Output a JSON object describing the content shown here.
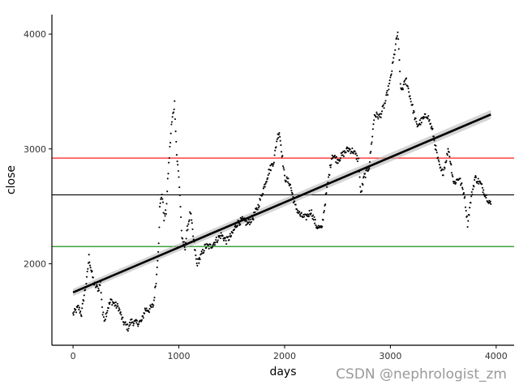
{
  "watermark": "CSDN @nephrologist_zm",
  "chart_data": {
    "type": "scatter",
    "title": "",
    "xlabel": "days",
    "ylabel": "close",
    "xlim": [
      -200,
      4170
    ],
    "ylim": [
      1290,
      4170
    ],
    "xticks": [
      0,
      1000,
      2000,
      3000,
      4000
    ],
    "yticks": [
      2000,
      3000,
      4000
    ],
    "grid": false,
    "colors": {
      "points": "#000000",
      "trend": "#000000",
      "band": "#b0b0b0",
      "upper": "#ff0000",
      "mean": "#000000",
      "lower": "#008000"
    },
    "series": [
      {
        "kind": "points",
        "keypoints": [
          [
            0,
            1560
          ],
          [
            50,
            1620
          ],
          [
            80,
            1560
          ],
          [
            100,
            1700
          ],
          [
            130,
            1860
          ],
          [
            150,
            2060
          ],
          [
            170,
            1950
          ],
          [
            200,
            1820
          ],
          [
            240,
            1780
          ],
          [
            260,
            1830
          ],
          [
            280,
            1560
          ],
          [
            300,
            1520
          ],
          [
            330,
            1620
          ],
          [
            360,
            1680
          ],
          [
            400,
            1640
          ],
          [
            430,
            1620
          ],
          [
            470,
            1500
          ],
          [
            520,
            1440
          ],
          [
            550,
            1500
          ],
          [
            600,
            1480
          ],
          [
            650,
            1500
          ],
          [
            680,
            1600
          ],
          [
            720,
            1600
          ],
          [
            760,
            1640
          ],
          [
            790,
            1900
          ],
          [
            810,
            2200
          ],
          [
            820,
            2480
          ],
          [
            840,
            2620
          ],
          [
            860,
            2400
          ],
          [
            880,
            2450
          ],
          [
            900,
            2800
          ],
          [
            930,
            3200
          ],
          [
            960,
            3400
          ],
          [
            980,
            2950
          ],
          [
            1000,
            2750
          ],
          [
            1010,
            2600
          ],
          [
            1030,
            2200
          ],
          [
            1060,
            2150
          ],
          [
            1080,
            2300
          ],
          [
            1110,
            2450
          ],
          [
            1140,
            2200
          ],
          [
            1170,
            2000
          ],
          [
            1200,
            2050
          ],
          [
            1250,
            2150
          ],
          [
            1300,
            2150
          ],
          [
            1350,
            2200
          ],
          [
            1400,
            2250
          ],
          [
            1450,
            2200
          ],
          [
            1500,
            2250
          ],
          [
            1550,
            2350
          ],
          [
            1600,
            2380
          ],
          [
            1650,
            2350
          ],
          [
            1700,
            2400
          ],
          [
            1750,
            2500
          ],
          [
            1800,
            2650
          ],
          [
            1850,
            2800
          ],
          [
            1900,
            2900
          ],
          [
            1930,
            3100
          ],
          [
            1950,
            3150
          ],
          [
            1970,
            3000
          ],
          [
            2000,
            2750
          ],
          [
            2050,
            2700
          ],
          [
            2100,
            2500
          ],
          [
            2150,
            2420
          ],
          [
            2200,
            2400
          ],
          [
            2250,
            2460
          ],
          [
            2300,
            2330
          ],
          [
            2350,
            2300
          ],
          [
            2400,
            2650
          ],
          [
            2450,
            2950
          ],
          [
            2500,
            2900
          ],
          [
            2550,
            2950
          ],
          [
            2600,
            3000
          ],
          [
            2650,
            2980
          ],
          [
            2700,
            2900
          ],
          [
            2720,
            2600
          ],
          [
            2750,
            2750
          ],
          [
            2800,
            2850
          ],
          [
            2850,
            3300
          ],
          [
            2900,
            3280
          ],
          [
            2950,
            3400
          ],
          [
            3000,
            3600
          ],
          [
            3050,
            3900
          ],
          [
            3070,
            4020
          ],
          [
            3100,
            3500
          ],
          [
            3150,
            3600
          ],
          [
            3200,
            3400
          ],
          [
            3250,
            3200
          ],
          [
            3300,
            3250
          ],
          [
            3350,
            3300
          ],
          [
            3400,
            3150
          ],
          [
            3450,
            2900
          ],
          [
            3480,
            2800
          ],
          [
            3500,
            2800
          ],
          [
            3550,
            3000
          ],
          [
            3600,
            2700
          ],
          [
            3650,
            2750
          ],
          [
            3700,
            2600
          ],
          [
            3730,
            2350
          ],
          [
            3760,
            2550
          ],
          [
            3800,
            2750
          ],
          [
            3850,
            2700
          ],
          [
            3900,
            2600
          ],
          [
            3950,
            2520
          ]
        ]
      },
      {
        "kind": "linear-fit",
        "x": [
          0,
          3950
        ],
        "y": [
          1750,
          3300
        ]
      },
      {
        "kind": "hline",
        "y": 2920,
        "color": "#ff0000"
      },
      {
        "kind": "hline",
        "y": 2600,
        "color": "#000000"
      },
      {
        "kind": "hline",
        "y": 2150,
        "color": "#008000"
      }
    ]
  }
}
